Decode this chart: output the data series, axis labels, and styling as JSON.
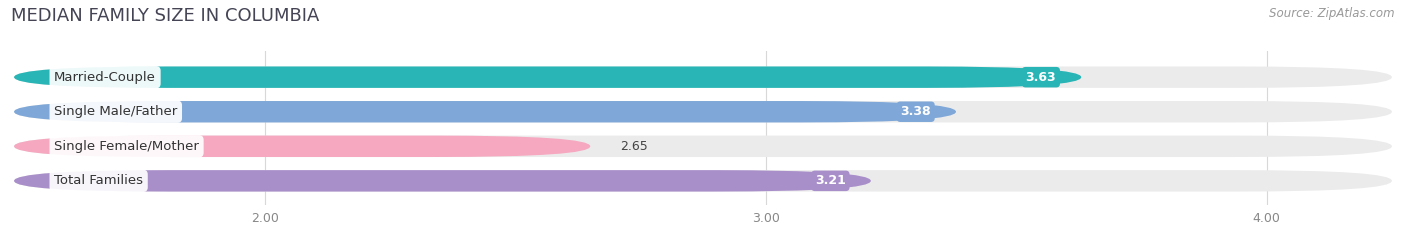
{
  "title": "MEDIAN FAMILY SIZE IN COLUMBIA",
  "source": "Source: ZipAtlas.com",
  "categories": [
    "Married-Couple",
    "Single Male/Father",
    "Single Female/Mother",
    "Total Families"
  ],
  "values": [
    3.63,
    3.38,
    2.65,
    3.21
  ],
  "bar_colors": [
    "#29b5b5",
    "#7fa8d8",
    "#f5a8c0",
    "#a98fca"
  ],
  "bar_bg_colors": [
    "#ebebeb",
    "#ebebeb",
    "#ebebeb",
    "#ebebeb"
  ],
  "x_min": 1.5,
  "x_max": 4.25,
  "x_ticks": [
    2.0,
    3.0,
    4.0
  ],
  "x_tick_labels": [
    "2.00",
    "3.00",
    "4.00"
  ],
  "label_fontsize": 9.5,
  "value_fontsize": 9,
  "title_fontsize": 13,
  "title_color": "#444455",
  "background_color": "#ffffff"
}
